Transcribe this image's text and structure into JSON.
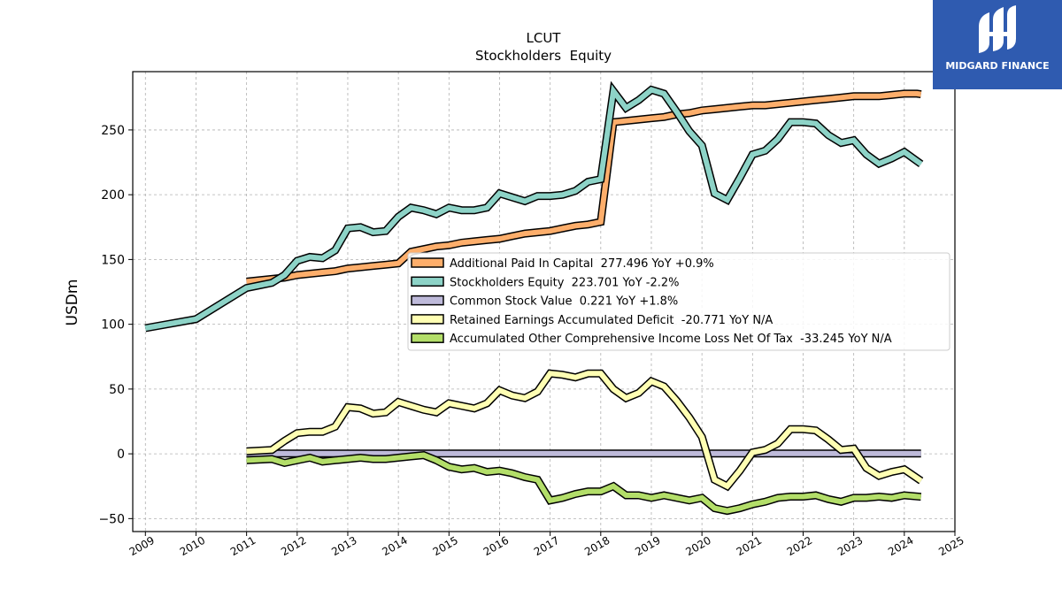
{
  "logo": {
    "text": "MIDGARD FINANCE",
    "background": "#2f5bb0"
  },
  "chart_data": {
    "type": "line",
    "title": "LCUT",
    "subtitle": "Stockholders  Equity",
    "ylabel": "USDm",
    "xlabel": "",
    "xlim": [
      2008.75,
      2025.0
    ],
    "ylim": [
      -60,
      295
    ],
    "x_ticks": [
      2009,
      2010,
      2011,
      2012,
      2013,
      2014,
      2015,
      2016,
      2017,
      2018,
      2019,
      2020,
      2021,
      2022,
      2023,
      2024,
      2025
    ],
    "x_tick_labels": [
      "2009",
      "2010",
      "2011",
      "2012",
      "2013",
      "2014",
      "2015",
      "2016",
      "2017",
      "2018",
      "2019",
      "2020",
      "2021",
      "2022",
      "2023",
      "2024",
      "2025"
    ],
    "y_ticks": [
      -50,
      0,
      50,
      100,
      150,
      200,
      250
    ],
    "y_tick_labels": [
      "−50",
      "0",
      "50",
      "100",
      "150",
      "200",
      "250"
    ],
    "grid": true,
    "legend_position": "center-right",
    "series": [
      {
        "name": "Additional Paid In Capital  277.496 YoY +0.9%",
        "color": "#fdae6b",
        "x": [
          2011.0,
          2011.25,
          2011.5,
          2011.75,
          2012.0,
          2012.25,
          2012.5,
          2012.75,
          2013.0,
          2013.25,
          2013.5,
          2013.75,
          2014.0,
          2014.25,
          2014.5,
          2014.75,
          2015.0,
          2015.25,
          2015.5,
          2015.75,
          2016.0,
          2016.25,
          2016.5,
          2016.75,
          2017.0,
          2017.25,
          2017.5,
          2017.75,
          2018.0,
          2018.25,
          2018.5,
          2018.75,
          2019.0,
          2019.25,
          2019.5,
          2019.75,
          2020.0,
          2020.25,
          2020.5,
          2020.75,
          2021.0,
          2021.25,
          2021.5,
          2021.75,
          2022.0,
          2022.25,
          2022.5,
          2022.75,
          2023.0,
          2023.25,
          2023.5,
          2023.75,
          2024.0,
          2024.25,
          2024.33
        ],
        "values": [
          133,
          134,
          135,
          136,
          138,
          139,
          140,
          141,
          143,
          144,
          145,
          146,
          147,
          156,
          158,
          160,
          161,
          163,
          164,
          165,
          166,
          168,
          170,
          171,
          172,
          174,
          176,
          177,
          179,
          256,
          257,
          258,
          259,
          260,
          262,
          263,
          265,
          266,
          267,
          268,
          269,
          269,
          270,
          271,
          272,
          273,
          274,
          275,
          276,
          276,
          276,
          277,
          278,
          278,
          277.5
        ]
      },
      {
        "name": "Stockholders Equity  223.701 YoY -2.2%",
        "color": "#8dd3c7",
        "x": [
          2009.0,
          2010.0,
          2011.0,
          2011.25,
          2011.5,
          2011.75,
          2012.0,
          2012.25,
          2012.5,
          2012.75,
          2013.0,
          2013.25,
          2013.5,
          2013.75,
          2014.0,
          2014.25,
          2014.5,
          2014.75,
          2015.0,
          2015.25,
          2015.5,
          2015.75,
          2016.0,
          2016.25,
          2016.5,
          2016.75,
          2017.0,
          2017.25,
          2017.5,
          2017.75,
          2018.0,
          2018.25,
          2018.5,
          2018.75,
          2019.0,
          2019.25,
          2019.5,
          2019.75,
          2020.0,
          2020.25,
          2020.5,
          2020.75,
          2021.0,
          2021.25,
          2021.5,
          2021.75,
          2022.0,
          2022.25,
          2022.5,
          2022.75,
          2023.0,
          2023.25,
          2023.5,
          2023.75,
          2024.0,
          2024.33
        ],
        "values": [
          97,
          104,
          128,
          130,
          132,
          138,
          149,
          152,
          151,
          157,
          174,
          175,
          171,
          172,
          183,
          190,
          188,
          185,
          190,
          188,
          188,
          190,
          201,
          198,
          195,
          199,
          199,
          200,
          203,
          210,
          212,
          280,
          267,
          273,
          281,
          278,
          264,
          249,
          238,
          201,
          196,
          213,
          231,
          234,
          243,
          256,
          256,
          255,
          246,
          240,
          242,
          231,
          224,
          228,
          233,
          223.7
        ]
      },
      {
        "name": "Common Stock Value  0.221 YoY +1.8%",
        "color": "#bebada",
        "x": [
          2011.0,
          2024.33
        ],
        "values": [
          0.2,
          0.221
        ]
      },
      {
        "name": "Retained Earnings Accumulated Deficit  -20.771 YoY N/A",
        "color": "#ffffb3",
        "x": [
          2011.0,
          2011.5,
          2011.75,
          2012.0,
          2012.25,
          2012.5,
          2012.75,
          2013.0,
          2013.25,
          2013.5,
          2013.75,
          2014.0,
          2014.25,
          2014.5,
          2014.75,
          2015.0,
          2015.25,
          2015.5,
          2015.75,
          2016.0,
          2016.25,
          2016.5,
          2016.75,
          2017.0,
          2017.25,
          2017.5,
          2017.75,
          2018.0,
          2018.25,
          2018.5,
          2018.75,
          2019.0,
          2019.25,
          2019.5,
          2019.75,
          2020.0,
          2020.25,
          2020.5,
          2020.75,
          2021.0,
          2021.25,
          2021.5,
          2021.75,
          2022.0,
          2022.25,
          2022.5,
          2022.75,
          2023.0,
          2023.25,
          2023.5,
          2023.75,
          2024.0,
          2024.33
        ],
        "values": [
          2,
          3,
          10,
          16,
          17,
          17,
          21,
          36,
          35,
          31,
          32,
          40,
          37,
          34,
          32,
          39,
          37,
          35,
          39,
          49,
          45,
          43,
          48,
          62,
          61,
          59,
          62,
          62,
          50,
          43,
          47,
          56,
          52,
          41,
          28,
          13,
          -20,
          -25,
          -13,
          1,
          3,
          8,
          19,
          19,
          18,
          11,
          3,
          4,
          -11,
          -17,
          -14,
          -12,
          -20.8
        ]
      },
      {
        "name": "Accumulated Other Comprehensive Income Loss Net Of Tax  -33.245 YoY N/A",
        "color": "#b3de69",
        "x": [
          2011.0,
          2011.5,
          2011.75,
          2012.0,
          2012.25,
          2012.5,
          2012.75,
          2013.0,
          2013.25,
          2013.5,
          2013.75,
          2014.0,
          2014.25,
          2014.5,
          2014.75,
          2015.0,
          2015.25,
          2015.5,
          2015.75,
          2016.0,
          2016.25,
          2016.5,
          2016.75,
          2017.0,
          2017.25,
          2017.5,
          2017.75,
          2018.0,
          2018.25,
          2018.5,
          2018.75,
          2019.0,
          2019.25,
          2019.5,
          2019.75,
          2020.0,
          2020.25,
          2020.5,
          2020.75,
          2021.0,
          2021.25,
          2021.5,
          2021.75,
          2022.0,
          2022.25,
          2022.5,
          2022.75,
          2023.0,
          2023.25,
          2023.5,
          2023.75,
          2024.0,
          2024.33
        ],
        "values": [
          -5,
          -4,
          -7,
          -5,
          -3,
          -6,
          -5,
          -4,
          -3,
          -4,
          -4,
          -3,
          -2,
          -1,
          -5,
          -10,
          -12,
          -11,
          -14,
          -13,
          -15,
          -18,
          -20,
          -36,
          -34,
          -31,
          -29,
          -29,
          -25,
          -32,
          -32,
          -34,
          -32,
          -34,
          -36,
          -34,
          -42,
          -44,
          -42,
          -39,
          -37,
          -34,
          -33,
          -33,
          -32,
          -35,
          -37,
          -34,
          -34,
          -33,
          -34,
          -32,
          -33.2
        ]
      }
    ]
  }
}
